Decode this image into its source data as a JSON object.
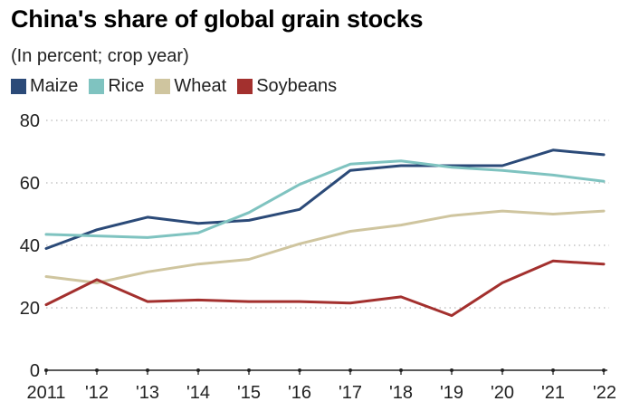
{
  "chart_data": {
    "type": "line",
    "title": "China's share of global grain stocks",
    "subtitle": "(In percent; crop year)",
    "categories": [
      "2011",
      "'12",
      "'13",
      "'14",
      "'15",
      "'16",
      "'17",
      "'18",
      "'19",
      "'20",
      "'21",
      "'22"
    ],
    "yticks": [
      "0",
      "20",
      "40",
      "60",
      "80"
    ],
    "ylim": [
      0,
      80
    ],
    "grid": true,
    "legend_position": "top-left",
    "series": [
      {
        "name": "Maize",
        "color": "#2b4a78",
        "values": [
          39,
          45,
          49,
          47,
          48,
          51.5,
          64,
          65.5,
          65.5,
          65.5,
          70.5,
          69
        ]
      },
      {
        "name": "Rice",
        "color": "#7fc3c0",
        "values": [
          43.5,
          43,
          42.5,
          44,
          50.5,
          59.5,
          66,
          67,
          65,
          64,
          62.5,
          60.5
        ]
      },
      {
        "name": "Wheat",
        "color": "#cfc59f",
        "values": [
          30,
          28,
          31.5,
          34,
          35.5,
          40.5,
          44.5,
          46.5,
          49.5,
          51,
          50,
          51
        ]
      },
      {
        "name": "Soybeans",
        "color": "#a3302e",
        "values": [
          21,
          29,
          22,
          22.5,
          22,
          22,
          21.5,
          23.5,
          17.5,
          28,
          35,
          34
        ]
      }
    ]
  }
}
